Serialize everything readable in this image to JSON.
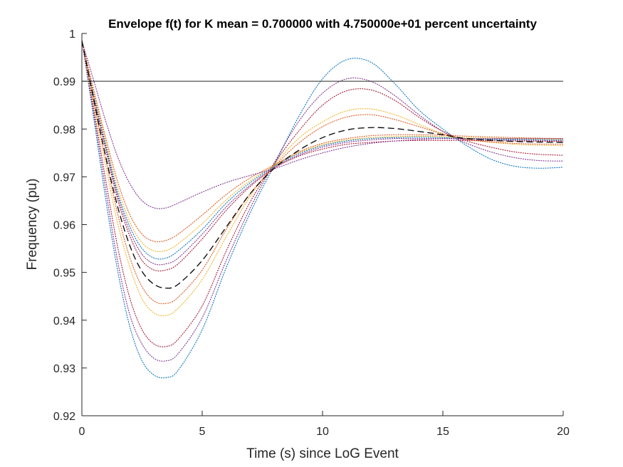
{
  "chart_data": {
    "type": "line",
    "title": "Envelope f(t) for K mean = 0.700000 with 4.750000e+01 percent uncertainty",
    "xlabel": "Time (s) since LoG Event",
    "ylabel": "Frequency (pu)",
    "xlim": [
      0,
      20
    ],
    "ylim": [
      0.92,
      1.0
    ],
    "xticks": [
      "0",
      "5",
      "10",
      "15",
      "20"
    ],
    "yticks": [
      "0.92",
      "0.93",
      "0.94",
      "0.95",
      "0.96",
      "0.97",
      "0.98",
      "0.99",
      "1"
    ],
    "grid": false,
    "legend": "none",
    "reference_line": {
      "y": 0.99,
      "color": "#262626"
    },
    "mean_curve": {
      "style": "dashed",
      "color": "#000000",
      "points": [
        [
          0,
          0.9985
        ],
        [
          0.5,
          0.986
        ],
        [
          1,
          0.974
        ],
        [
          1.5,
          0.9635
        ],
        [
          2,
          0.9555
        ],
        [
          2.5,
          0.9502
        ],
        [
          3,
          0.9475
        ],
        [
          3.5,
          0.9467
        ],
        [
          4,
          0.9475
        ],
        [
          5,
          0.9525
        ],
        [
          6,
          0.9595
        ],
        [
          7,
          0.9665
        ],
        [
          8,
          0.9718
        ],
        [
          9,
          0.9755
        ],
        [
          10,
          0.9782
        ],
        [
          11,
          0.9798
        ],
        [
          12,
          0.9803
        ],
        [
          13,
          0.9801
        ],
        [
          14,
          0.9795
        ],
        [
          15,
          0.9788
        ],
        [
          16,
          0.978
        ],
        [
          18,
          0.9774
        ],
        [
          20,
          0.9772
        ]
      ]
    },
    "envelope_curves": [
      {
        "color": "#0072BD",
        "points": [
          [
            0,
            0.9985
          ],
          [
            0.5,
            0.982
          ],
          [
            1,
            0.965
          ],
          [
            1.5,
            0.95
          ],
          [
            2,
            0.9385
          ],
          [
            2.5,
            0.9315
          ],
          [
            3,
            0.9285
          ],
          [
            3.5,
            0.928
          ],
          [
            4,
            0.9295
          ],
          [
            5,
            0.938
          ],
          [
            6,
            0.951
          ],
          [
            7,
            0.9625
          ],
          [
            8,
            0.9725
          ],
          [
            9,
            0.9825
          ],
          [
            10,
            0.9905
          ],
          [
            11,
            0.9945
          ],
          [
            12,
            0.994
          ],
          [
            13,
            0.9895
          ],
          [
            14,
            0.984
          ],
          [
            15,
            0.98
          ],
          [
            16,
            0.9765
          ],
          [
            17,
            0.9737
          ],
          [
            18,
            0.9722
          ],
          [
            19,
            0.9718
          ],
          [
            20,
            0.972
          ]
        ]
      },
      {
        "color": "#7E2F8E",
        "points": [
          [
            0,
            0.9985
          ],
          [
            0.5,
            0.983
          ],
          [
            1,
            0.967
          ],
          [
            1.5,
            0.952
          ],
          [
            2,
            0.941
          ],
          [
            2.5,
            0.935
          ],
          [
            3,
            0.932
          ],
          [
            3.5,
            0.9315
          ],
          [
            4,
            0.933
          ],
          [
            5,
            0.9405
          ],
          [
            6,
            0.9525
          ],
          [
            7,
            0.9635
          ],
          [
            8,
            0.973
          ],
          [
            9,
            0.9815
          ],
          [
            10,
            0.9875
          ],
          [
            11,
            0.9905
          ],
          [
            12,
            0.99
          ],
          [
            13,
            0.987
          ],
          [
            14,
            0.983
          ],
          [
            15,
            0.9795
          ],
          [
            16,
            0.977
          ],
          [
            17,
            0.9752
          ],
          [
            18,
            0.974
          ],
          [
            19,
            0.9734
          ],
          [
            20,
            0.9733
          ]
        ]
      },
      {
        "color": "#A2142F",
        "points": [
          [
            0,
            0.9985
          ],
          [
            0.5,
            0.984
          ],
          [
            1,
            0.969
          ],
          [
            1.5,
            0.955
          ],
          [
            2,
            0.9445
          ],
          [
            2.5,
            0.938
          ],
          [
            3,
            0.935
          ],
          [
            3.5,
            0.9345
          ],
          [
            4,
            0.936
          ],
          [
            5,
            0.943
          ],
          [
            6,
            0.9545
          ],
          [
            7,
            0.9648
          ],
          [
            8,
            0.9728
          ],
          [
            9,
            0.9795
          ],
          [
            10,
            0.985
          ],
          [
            11,
            0.988
          ],
          [
            12,
            0.9882
          ],
          [
            13,
            0.986
          ],
          [
            14,
            0.9825
          ],
          [
            15,
            0.9795
          ],
          [
            16,
            0.9775
          ],
          [
            17,
            0.9762
          ],
          [
            18,
            0.9752
          ],
          [
            19,
            0.9747
          ],
          [
            20,
            0.9745
          ]
        ]
      },
      {
        "color": "#EDB120",
        "points": [
          [
            0,
            0.9985
          ],
          [
            0.5,
            0.985
          ],
          [
            1,
            0.972
          ],
          [
            1.5,
            0.96
          ],
          [
            2,
            0.951
          ],
          [
            2.5,
            0.9445
          ],
          [
            3,
            0.9415
          ],
          [
            3.5,
            0.941
          ],
          [
            4,
            0.9425
          ],
          [
            5,
            0.9485
          ],
          [
            6,
            0.9575
          ],
          [
            7,
            0.966
          ],
          [
            8,
            0.9725
          ],
          [
            9,
            0.978
          ],
          [
            10,
            0.9815
          ],
          [
            11,
            0.9838
          ],
          [
            12,
            0.9842
          ],
          [
            13,
            0.983
          ],
          [
            14,
            0.981
          ],
          [
            15,
            0.979
          ],
          [
            16,
            0.9778
          ],
          [
            18,
            0.9768
          ],
          [
            20,
            0.9765
          ]
        ]
      },
      {
        "color": "#D95319",
        "points": [
          [
            0,
            0.9985
          ],
          [
            0.5,
            0.9855
          ],
          [
            1,
            0.9735
          ],
          [
            1.5,
            0.962
          ],
          [
            2,
            0.953
          ],
          [
            2.5,
            0.947
          ],
          [
            3,
            0.944
          ],
          [
            3.5,
            0.9435
          ],
          [
            4,
            0.9448
          ],
          [
            5,
            0.9505
          ],
          [
            6,
            0.959
          ],
          [
            7,
            0.9665
          ],
          [
            8,
            0.9722
          ],
          [
            9,
            0.977
          ],
          [
            10,
            0.9805
          ],
          [
            11,
            0.9825
          ],
          [
            12,
            0.983
          ],
          [
            13,
            0.982
          ],
          [
            14,
            0.9805
          ],
          [
            15,
            0.979
          ],
          [
            16,
            0.9778
          ],
          [
            18,
            0.977
          ],
          [
            20,
            0.9768
          ]
        ]
      },
      {
        "color": "#A2142F",
        "points": [
          [
            0,
            0.9985
          ],
          [
            0.5,
            0.9865
          ],
          [
            1,
            0.9755
          ],
          [
            1.5,
            0.965
          ],
          [
            2,
            0.9575
          ],
          [
            2.5,
            0.9525
          ],
          [
            3,
            0.9505
          ],
          [
            3.5,
            0.9505
          ],
          [
            4,
            0.9518
          ],
          [
            5,
            0.957
          ],
          [
            6,
            0.963
          ],
          [
            7,
            0.968
          ],
          [
            8,
            0.9718
          ],
          [
            9,
            0.9743
          ],
          [
            10,
            0.9758
          ],
          [
            11,
            0.9768
          ],
          [
            12,
            0.9772
          ],
          [
            13,
            0.9775
          ],
          [
            14,
            0.9776
          ],
          [
            15,
            0.9776
          ],
          [
            16,
            0.9776
          ],
          [
            18,
            0.9775
          ],
          [
            20,
            0.9774
          ]
        ]
      },
      {
        "color": "#7E2F8E",
        "points": [
          [
            0,
            0.9985
          ],
          [
            0.5,
            0.9868
          ],
          [
            1,
            0.976
          ],
          [
            1.5,
            0.9658
          ],
          [
            2,
            0.9585
          ],
          [
            2.5,
            0.9538
          ],
          [
            3,
            0.9518
          ],
          [
            3.5,
            0.9518
          ],
          [
            4,
            0.953
          ],
          [
            5,
            0.958
          ],
          [
            6,
            0.9637
          ],
          [
            7,
            0.9683
          ],
          [
            8,
            0.972
          ],
          [
            9,
            0.9745
          ],
          [
            10,
            0.9762
          ],
          [
            11,
            0.9772
          ],
          [
            12,
            0.9777
          ],
          [
            13,
            0.978
          ],
          [
            14,
            0.978
          ],
          [
            15,
            0.978
          ],
          [
            16,
            0.9779
          ],
          [
            18,
            0.9777
          ],
          [
            20,
            0.9776
          ]
        ]
      },
      {
        "color": "#0072BD",
        "points": [
          [
            0,
            0.9985
          ],
          [
            0.5,
            0.987
          ],
          [
            1,
            0.9765
          ],
          [
            1.5,
            0.9665
          ],
          [
            2,
            0.9595
          ],
          [
            2.5,
            0.955
          ],
          [
            3,
            0.953
          ],
          [
            3.5,
            0.953
          ],
          [
            4,
            0.9545
          ],
          [
            5,
            0.959
          ],
          [
            6,
            0.9645
          ],
          [
            7,
            0.9688
          ],
          [
            8,
            0.9722
          ],
          [
            9,
            0.9748
          ],
          [
            10,
            0.9765
          ],
          [
            11,
            0.9775
          ],
          [
            12,
            0.978
          ],
          [
            13,
            0.9782
          ],
          [
            14,
            0.9783
          ],
          [
            15,
            0.9782
          ],
          [
            16,
            0.978
          ],
          [
            18,
            0.9778
          ],
          [
            20,
            0.9777
          ]
        ]
      },
      {
        "color": "#EDB120",
        "points": [
          [
            0,
            0.9985
          ],
          [
            0.5,
            0.9875
          ],
          [
            1,
            0.9772
          ],
          [
            1.5,
            0.9675
          ],
          [
            2,
            0.9605
          ],
          [
            2.5,
            0.9562
          ],
          [
            3,
            0.9545
          ],
          [
            3.5,
            0.9546
          ],
          [
            4,
            0.956
          ],
          [
            5,
            0.9602
          ],
          [
            6,
            0.9652
          ],
          [
            7,
            0.9692
          ],
          [
            8,
            0.9724
          ],
          [
            9,
            0.975
          ],
          [
            10,
            0.9767
          ],
          [
            11,
            0.9777
          ],
          [
            12,
            0.9782
          ],
          [
            13,
            0.9784
          ],
          [
            14,
            0.9785
          ],
          [
            15,
            0.9784
          ],
          [
            16,
            0.9782
          ],
          [
            18,
            0.978
          ],
          [
            20,
            0.9779
          ]
        ]
      },
      {
        "color": "#D95319",
        "points": [
          [
            0,
            0.9985
          ],
          [
            0.5,
            0.988
          ],
          [
            1,
            0.978
          ],
          [
            1.5,
            0.9688
          ],
          [
            2,
            0.962
          ],
          [
            2.5,
            0.958
          ],
          [
            3,
            0.9565
          ],
          [
            3.5,
            0.9567
          ],
          [
            4,
            0.958
          ],
          [
            5,
            0.962
          ],
          [
            6,
            0.9663
          ],
          [
            7,
            0.9698
          ],
          [
            8,
            0.9725
          ],
          [
            9,
            0.9752
          ],
          [
            10,
            0.977
          ],
          [
            11,
            0.978
          ],
          [
            12,
            0.9786
          ],
          [
            13,
            0.9788
          ],
          [
            14,
            0.9788
          ],
          [
            15,
            0.9787
          ],
          [
            16,
            0.9785
          ],
          [
            18,
            0.9782
          ],
          [
            20,
            0.978
          ]
        ]
      },
      {
        "color": "#7E2F8E",
        "points": [
          [
            0,
            0.9985
          ],
          [
            0.5,
            0.99
          ],
          [
            1,
            0.9815
          ],
          [
            1.5,
            0.974
          ],
          [
            2,
            0.9685
          ],
          [
            2.5,
            0.965
          ],
          [
            3,
            0.9635
          ],
          [
            3.5,
            0.9635
          ],
          [
            4,
            0.9645
          ],
          [
            5,
            0.9668
          ],
          [
            6,
            0.9688
          ],
          [
            7,
            0.9703
          ],
          [
            8,
            0.9717
          ],
          [
            9,
            0.9735
          ],
          [
            10,
            0.975
          ],
          [
            11,
            0.9762
          ],
          [
            12,
            0.977
          ],
          [
            13,
            0.9775
          ],
          [
            14,
            0.9778
          ],
          [
            15,
            0.978
          ],
          [
            16,
            0.978
          ],
          [
            18,
            0.978
          ],
          [
            20,
            0.978
          ]
        ]
      }
    ]
  }
}
